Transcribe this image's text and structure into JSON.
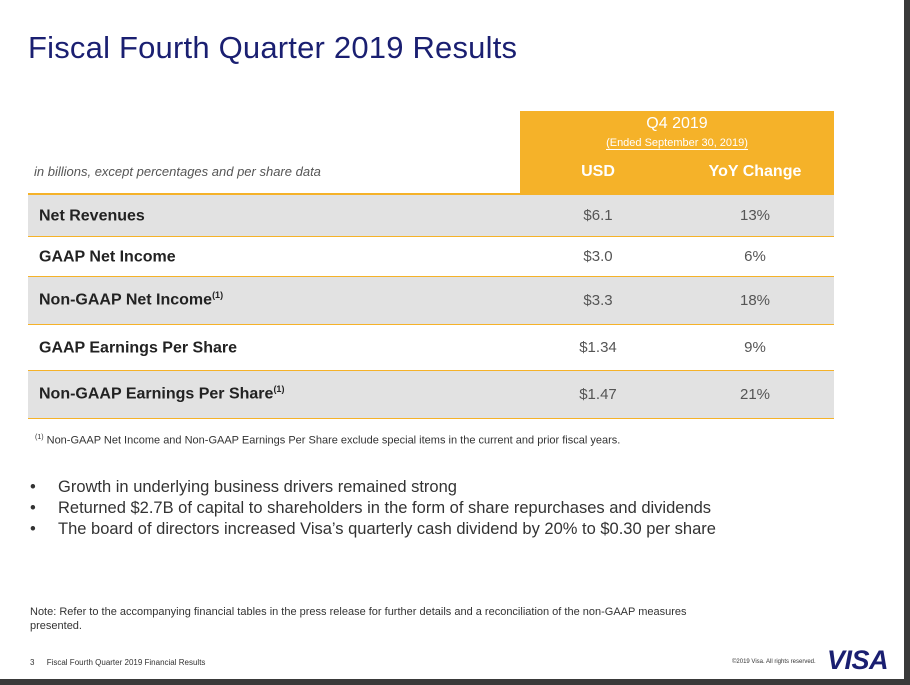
{
  "title": "Fiscal Fourth Quarter 2019 Results",
  "table": {
    "period": "Q4 2019",
    "period_sub": "(Ended September 30, 2019)",
    "note": "in billions, except percentages and per share data",
    "col_usd": "USD",
    "col_yoy": "YoY Change",
    "rows": [
      {
        "label": "Net Revenues",
        "sup": "",
        "usd": "$6.1",
        "yoy": "13%"
      },
      {
        "label": "GAAP Net Income",
        "sup": "",
        "usd": "$3.0",
        "yoy": "6%"
      },
      {
        "label": "Non-GAAP Net Income",
        "sup": "(1)",
        "usd": "$3.3",
        "yoy": "18%"
      },
      {
        "label": "GAAP Earnings Per Share",
        "sup": "",
        "usd": "$1.34",
        "yoy": "9%"
      },
      {
        "label": "Non-GAAP Earnings Per Share",
        "sup": "(1)",
        "usd": "$1.47",
        "yoy": "21%"
      }
    ]
  },
  "footnote": {
    "marker": "(1)",
    "text": " Non-GAAP Net Income and Non-GAAP Earnings Per Share exclude special items in the current and prior fiscal years."
  },
  "bullets": [
    "Growth in underlying business drivers remained strong",
    "Returned $2.7B of capital to shareholders in the form of share repurchases and dividends",
    "The board of directors increased Visa’s quarterly cash dividend by 20% to $0.30 per share"
  ],
  "bullet_symbol": "•",
  "note": "Note: Refer to the accompanying financial tables in the press release for further details and a reconciliation of the non-GAAP measures presented.",
  "footer": {
    "page_number": "3",
    "page_title": "Fiscal Fourth Quarter 2019 Financial Results",
    "copyright": "©2019 Visa. All rights reserved.",
    "logo": "VISA"
  },
  "colors": {
    "accent": "#f5b229",
    "brand": "#1a1f71",
    "row_shade": "#e2e2e2"
  }
}
